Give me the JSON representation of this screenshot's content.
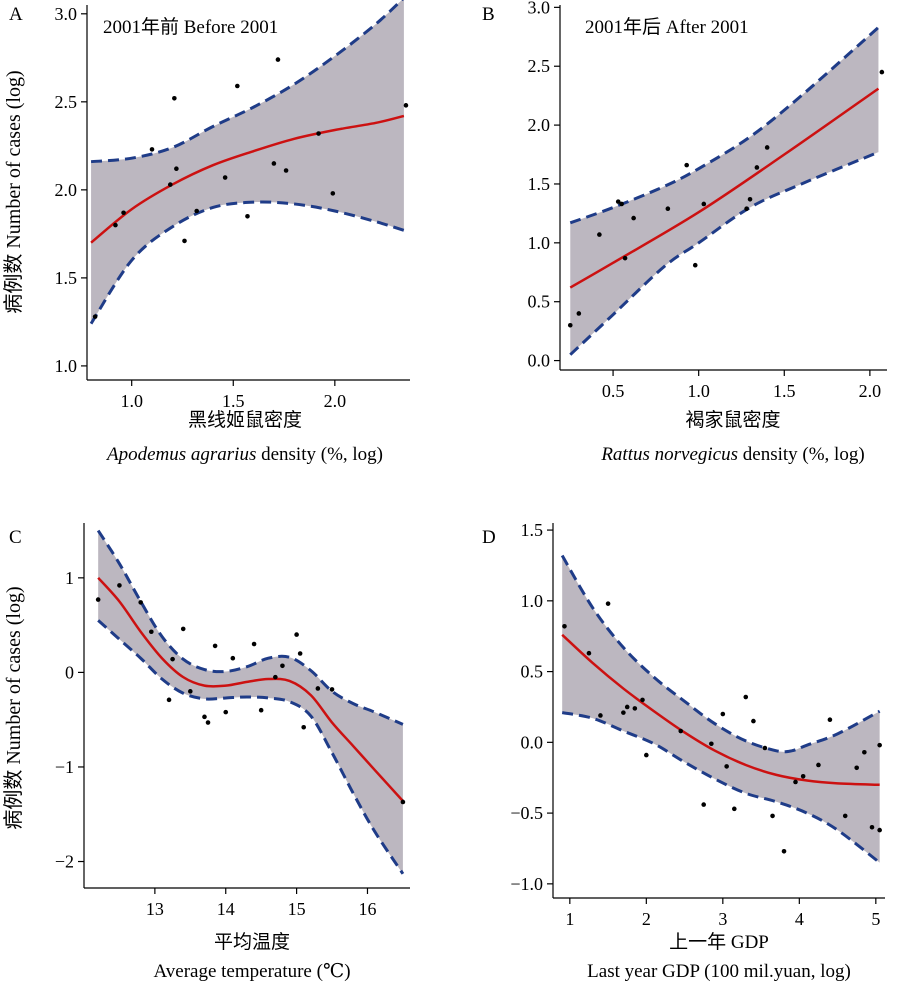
{
  "ylabel_shared": "病例数 Number of cases (log)",
  "colors": {
    "band": "#bcb7c0",
    "boundary": "#1f3c88",
    "fit": "#cc1111",
    "point": "#000000"
  },
  "chart_data": [
    {
      "panel": "A",
      "type": "scatter",
      "title": "2001年前 Before 2001",
      "xlabel_cn": "黑线姬鼠密度",
      "xlabel_en_italic": "Apodemus agrarius",
      "xlabel_en_rest": " density (%, log)",
      "xlim": [
        0.78,
        2.37
      ],
      "ylim": [
        0.92,
        3.05
      ],
      "xticks": [
        1.0,
        1.5,
        2.0
      ],
      "xtick_labels": [
        "1.0",
        "1.5",
        "2.0"
      ],
      "yticks": [
        1.0,
        1.5,
        2.0,
        2.5,
        3.0
      ],
      "ytick_labels": [
        "1.0",
        "1.5",
        "2.0",
        "2.5",
        "3.0"
      ],
      "points": {
        "x": [
          0.82,
          0.92,
          0.96,
          1.1,
          1.19,
          1.21,
          1.22,
          1.26,
          1.32,
          1.46,
          1.52,
          1.57,
          1.7,
          1.72,
          1.76,
          1.92,
          1.99,
          2.35
        ],
        "y": [
          1.28,
          1.8,
          1.87,
          2.23,
          2.03,
          2.52,
          2.12,
          1.71,
          1.88,
          2.07,
          2.59,
          1.85,
          2.15,
          2.74,
          2.11,
          2.32,
          1.98,
          2.48
        ]
      },
      "fit": {
        "x": [
          0.8,
          1.0,
          1.2,
          1.4,
          1.6,
          1.8,
          2.0,
          2.2,
          2.34
        ],
        "y": [
          1.7,
          1.89,
          2.03,
          2.14,
          2.22,
          2.29,
          2.34,
          2.38,
          2.42
        ]
      },
      "upper": {
        "x": [
          0.8,
          1.0,
          1.2,
          1.4,
          1.6,
          1.8,
          2.0,
          2.2,
          2.34
        ],
        "y": [
          2.16,
          2.18,
          2.24,
          2.36,
          2.47,
          2.6,
          2.76,
          2.94,
          3.09
        ]
      },
      "lower": {
        "x": [
          0.8,
          1.0,
          1.2,
          1.4,
          1.6,
          1.8,
          2.0,
          2.2,
          2.34
        ],
        "y": [
          1.24,
          1.6,
          1.79,
          1.9,
          1.93,
          1.92,
          1.88,
          1.82,
          1.77
        ]
      }
    },
    {
      "panel": "B",
      "type": "scatter",
      "title": "2001年后 After 2001",
      "xlabel_cn": "褐家鼠密度",
      "xlabel_en_italic": "Rattus norvegicus",
      "xlabel_en_rest": " density (%, log)",
      "xlim": [
        0.19,
        2.1
      ],
      "ylim": [
        -0.08,
        3.02
      ],
      "xticks": [
        0.5,
        1.0,
        1.5,
        2.0
      ],
      "xtick_labels": [
        "0.5",
        "1.0",
        "1.5",
        "2.0"
      ],
      "yticks": [
        0.0,
        0.5,
        1.0,
        1.5,
        2.0,
        2.5,
        3.0
      ],
      "ytick_labels": [
        "0.0",
        "0.5",
        "1.0",
        "1.5",
        "2.0",
        "2.5",
        "3.0"
      ],
      "points": {
        "x": [
          0.25,
          0.3,
          0.42,
          0.53,
          0.55,
          0.57,
          0.62,
          0.82,
          0.93,
          0.98,
          1.03,
          1.28,
          1.3,
          1.34,
          1.4,
          2.07
        ],
        "y": [
          0.3,
          0.4,
          1.07,
          1.35,
          1.33,
          0.87,
          1.21,
          1.29,
          1.66,
          0.81,
          1.33,
          1.29,
          1.37,
          1.64,
          1.81,
          2.45
        ]
      },
      "fit": {
        "x": [
          0.25,
          0.5,
          1.0,
          1.5,
          2.05
        ],
        "y": [
          0.62,
          0.83,
          1.26,
          1.75,
          2.31
        ]
      },
      "upper": {
        "x": [
          0.25,
          0.5,
          0.8,
          1.0,
          1.3,
          1.6,
          2.05
        ],
        "y": [
          1.17,
          1.3,
          1.48,
          1.63,
          1.9,
          2.25,
          2.83
        ]
      },
      "lower": {
        "x": [
          0.25,
          0.5,
          0.8,
          1.0,
          1.3,
          1.6,
          2.05
        ],
        "y": [
          0.05,
          0.39,
          0.8,
          1.0,
          1.3,
          1.5,
          1.77
        ]
      }
    },
    {
      "panel": "C",
      "type": "scatter",
      "title": "",
      "xlabel_cn": "平均温度",
      "xlabel_en": "Average temperature (℃)",
      "xlim": [
        12.0,
        16.6
      ],
      "ylim": [
        -2.28,
        1.58
      ],
      "xticks": [
        13,
        14,
        15,
        16
      ],
      "xtick_labels": [
        "13",
        "14",
        "15",
        "16"
      ],
      "yticks": [
        -2,
        -1,
        0,
        1
      ],
      "ytick_labels": [
        "−2",
        "−1",
        "0",
        "1"
      ],
      "points": {
        "x": [
          12.2,
          12.5,
          12.8,
          12.95,
          13.2,
          13.25,
          13.4,
          13.5,
          13.7,
          13.75,
          13.85,
          14.0,
          14.1,
          14.4,
          14.5,
          14.7,
          14.8,
          15.0,
          15.05,
          15.1,
          15.3,
          15.5,
          16.5
        ],
        "y": [
          0.77,
          0.92,
          0.74,
          0.43,
          -0.29,
          0.14,
          0.46,
          -0.2,
          -0.47,
          -0.53,
          0.28,
          -0.42,
          0.15,
          0.3,
          -0.4,
          -0.05,
          0.07,
          0.4,
          0.2,
          -0.58,
          -0.17,
          -0.18,
          -1.37
        ]
      },
      "fit": {
        "x": [
          12.2,
          12.5,
          12.8,
          13.1,
          13.4,
          13.7,
          14.0,
          14.3,
          14.6,
          14.9,
          15.2,
          15.5,
          15.8,
          16.1,
          16.5
        ],
        "y": [
          1.0,
          0.75,
          0.43,
          0.15,
          -0.05,
          -0.14,
          -0.14,
          -0.1,
          -0.07,
          -0.09,
          -0.24,
          -0.53,
          -0.78,
          -1.03,
          -1.36
        ]
      },
      "upper": {
        "x": [
          12.2,
          12.5,
          12.8,
          13.1,
          13.4,
          13.7,
          14.0,
          14.3,
          14.6,
          14.9,
          15.2,
          15.5,
          15.8,
          16.1,
          16.5
        ],
        "y": [
          1.5,
          1.15,
          0.75,
          0.38,
          0.14,
          0.03,
          0.01,
          0.06,
          0.15,
          0.16,
          0.02,
          -0.2,
          -0.33,
          -0.42,
          -0.55
        ]
      },
      "lower": {
        "x": [
          12.2,
          12.5,
          12.8,
          13.1,
          13.4,
          13.7,
          14.0,
          14.3,
          14.6,
          14.9,
          15.2,
          15.5,
          15.8,
          16.1,
          16.5
        ],
        "y": [
          0.55,
          0.35,
          0.15,
          -0.07,
          -0.22,
          -0.28,
          -0.27,
          -0.26,
          -0.27,
          -0.31,
          -0.46,
          -0.85,
          -1.28,
          -1.68,
          -2.13
        ]
      }
    },
    {
      "panel": "D",
      "type": "scatter",
      "title": "",
      "xlabel_cn": "上一年 GDP",
      "xlabel_en": "Last year GDP (100 mil.yuan, log)",
      "xlim": [
        0.78,
        5.12
      ],
      "ylim": [
        -1.1,
        1.55
      ],
      "xticks": [
        1,
        2,
        3,
        4,
        5
      ],
      "xtick_labels": [
        "1",
        "2",
        "3",
        "4",
        "5"
      ],
      "yticks": [
        -1.0,
        -0.5,
        0.0,
        0.5,
        1.0,
        1.5
      ],
      "ytick_labels": [
        "−1.0",
        "−0.5",
        "0.0",
        "0.5",
        "1.0",
        "1.5"
      ],
      "points": {
        "x": [
          0.93,
          1.25,
          1.4,
          1.5,
          1.7,
          1.75,
          1.85,
          1.95,
          2.0,
          2.45,
          2.75,
          2.85,
          3.0,
          3.05,
          3.15,
          3.3,
          3.4,
          3.55,
          3.65,
          3.8,
          3.95,
          4.05,
          4.25,
          4.4,
          4.6,
          4.75,
          4.85,
          4.95,
          5.05,
          5.05
        ],
        "y": [
          0.82,
          0.63,
          0.19,
          0.98,
          0.21,
          0.25,
          0.24,
          0.3,
          -0.09,
          0.08,
          -0.44,
          -0.01,
          0.2,
          -0.17,
          -0.47,
          0.32,
          0.15,
          -0.04,
          -0.52,
          -0.77,
          -0.28,
          -0.24,
          -0.16,
          0.16,
          -0.52,
          -0.18,
          -0.07,
          -0.6,
          -0.62,
          -0.02
        ]
      },
      "fit": {
        "x": [
          0.9,
          1.3,
          1.7,
          2.1,
          2.5,
          2.9,
          3.3,
          3.7,
          4.1,
          4.5,
          5.05
        ],
        "y": [
          0.76,
          0.56,
          0.38,
          0.22,
          0.07,
          -0.06,
          -0.16,
          -0.23,
          -0.27,
          -0.29,
          -0.3
        ]
      },
      "upper": {
        "x": [
          0.9,
          1.3,
          1.7,
          2.1,
          2.5,
          2.9,
          3.3,
          3.7,
          3.9,
          4.1,
          4.5,
          5.05
        ],
        "y": [
          1.32,
          0.95,
          0.67,
          0.46,
          0.29,
          0.13,
          0.01,
          -0.06,
          -0.06,
          -0.02,
          0.06,
          0.22
        ]
      },
      "lower": {
        "x": [
          0.9,
          1.3,
          1.7,
          2.1,
          2.5,
          2.9,
          3.3,
          3.7,
          4.1,
          4.5,
          5.05
        ],
        "y": [
          0.21,
          0.17,
          0.08,
          -0.01,
          -0.14,
          -0.26,
          -0.36,
          -0.42,
          -0.5,
          -0.62,
          -0.85
        ]
      }
    }
  ]
}
